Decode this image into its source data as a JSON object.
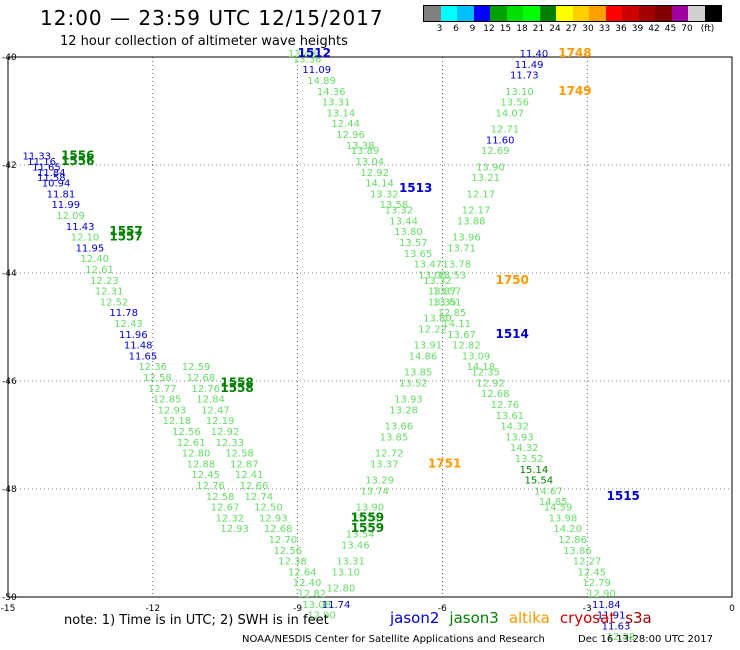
{
  "header": {
    "title": "12:00 — 23:59 UTC 12/15/2017",
    "subtitle": "12 hour collection of altimeter wave heights"
  },
  "scale": {
    "colors": [
      "#808080",
      "#00ffff",
      "#00bfff",
      "#0000ff",
      "#00a000",
      "#00e000",
      "#00ff00",
      "#008000",
      "#ffff00",
      "#ffd000",
      "#ffa000",
      "#ff0000",
      "#cc0000",
      "#a00000",
      "#800000",
      "#a000a0",
      "#d0d0d0",
      "#000000"
    ],
    "labels": [
      "3",
      "6",
      "9",
      "12",
      "15",
      "18",
      "21",
      "24",
      "27",
      "30",
      "33",
      "36",
      "39",
      "42",
      "45",
      "70",
      "(ft)"
    ]
  },
  "axes": {
    "x_ticks": [
      "-15",
      "-12",
      "-9",
      "-6",
      "-3",
      "0"
    ],
    "y_ticks": [
      "-40",
      "-42",
      "-44",
      "-46",
      "-48",
      "-50"
    ],
    "x_range": [
      -15,
      0
    ],
    "y_range": [
      -40,
      -50
    ]
  },
  "tracks": [
    {
      "name": "1512",
      "color": "#0000cc",
      "lon": -9.0,
      "lat": -40.0
    },
    {
      "name": "1513",
      "color": "#0000cc",
      "lon": -6.9,
      "lat": -42.5
    },
    {
      "name": "1514",
      "color": "#0000cc",
      "lon": -4.9,
      "lat": -45.2
    },
    {
      "name": "1515",
      "color": "#0000cc",
      "lon": -2.6,
      "lat": -48.2
    },
    {
      "name": "1748",
      "color": "#ff9900",
      "lon": -3.6,
      "lat": -40.0
    },
    {
      "name": "1749",
      "color": "#ff9900",
      "lon": -3.6,
      "lat": -40.7
    },
    {
      "name": "1750",
      "color": "#ff9900",
      "lon": -4.9,
      "lat": -44.2
    },
    {
      "name": "1751",
      "color": "#ff9900",
      "lon": -6.3,
      "lat": -47.6
    },
    {
      "name": "1556",
      "color": "#008000",
      "lon": -13.9,
      "lat": -41.9
    },
    {
      "name": "1556",
      "color": "#008000",
      "lon": -13.9,
      "lat": -42.0
    },
    {
      "name": "1557",
      "color": "#008000",
      "lon": -12.9,
      "lat": -43.3
    },
    {
      "name": "1557",
      "color": "#008000",
      "lon": -12.9,
      "lat": -43.4
    },
    {
      "name": "1558",
      "color": "#008000",
      "lon": -10.6,
      "lat": -46.1
    },
    {
      "name": "1558",
      "color": "#008000",
      "lon": -10.6,
      "lat": -46.2
    },
    {
      "name": "1559",
      "color": "#008000",
      "lon": -7.9,
      "lat": -48.6
    },
    {
      "name": "1559",
      "color": "#008000",
      "lon": -7.9,
      "lat": -48.8
    }
  ],
  "pass_1512": [
    {
      "v": "13.48",
      "lon": -9.2,
      "lat": -40.0,
      "c": "#66dd66"
    },
    {
      "v": "13.36",
      "lon": -9.1,
      "lat": -40.1,
      "c": "#66dd66"
    },
    {
      "v": "11.09",
      "lon": -8.9,
      "lat": -40.3,
      "c": "#0000cc"
    },
    {
      "v": "14.89",
      "lon": -8.8,
      "lat": -40.5,
      "c": "#66dd66"
    },
    {
      "v": "14.36",
      "lon": -8.6,
      "lat": -40.7,
      "c": "#66dd66"
    },
    {
      "v": "13.31",
      "lon": -8.5,
      "lat": -40.9,
      "c": "#66dd66"
    },
    {
      "v": "13.14",
      "lon": -8.4,
      "lat": -41.1,
      "c": "#66dd66"
    },
    {
      "v": "12.44",
      "lon": -8.3,
      "lat": -41.3,
      "c": "#66dd66"
    },
    {
      "v": "12.96",
      "lon": -8.2,
      "lat": -41.5,
      "c": "#66dd66"
    },
    {
      "v": "13.38",
      "lon": -8.0,
      "lat": -41.7,
      "c": "#66dd66"
    },
    {
      "v": "13.89",
      "lon": -7.9,
      "lat": -41.8,
      "c": "#66dd66"
    },
    {
      "v": "13.04",
      "lon": -7.8,
      "lat": -42.0,
      "c": "#66dd66"
    },
    {
      "v": "12.92",
      "lon": -7.7,
      "lat": -42.2,
      "c": "#66dd66"
    },
    {
      "v": "14.14",
      "lon": -7.6,
      "lat": -42.4,
      "c": "#66dd66"
    },
    {
      "v": "13.32",
      "lon": -7.5,
      "lat": -42.6,
      "c": "#66dd66"
    },
    {
      "v": "13.58",
      "lon": -7.3,
      "lat": -42.8,
      "c": "#66dd66"
    },
    {
      "v": "13.32",
      "lon": -7.2,
      "lat": -42.9,
      "c": "#66dd66"
    },
    {
      "v": "13.44",
      "lon": -7.1,
      "lat": -43.1,
      "c": "#66dd66"
    },
    {
      "v": "13.80",
      "lon": -7.0,
      "lat": -43.3,
      "c": "#66dd66"
    },
    {
      "v": "13.57",
      "lon": -6.9,
      "lat": -43.5,
      "c": "#66dd66"
    },
    {
      "v": "13.65",
      "lon": -6.8,
      "lat": -43.7,
      "c": "#66dd66"
    },
    {
      "v": "13.47",
      "lon": -6.6,
      "lat": -43.9,
      "c": "#66dd66"
    },
    {
      "v": "13.08",
      "lon": -6.5,
      "lat": -44.1,
      "c": "#66dd66"
    },
    {
      "v": "13.32",
      "lon": -6.4,
      "lat": -44.2,
      "c": "#66dd66"
    },
    {
      "v": "13.87",
      "lon": -6.3,
      "lat": -44.4,
      "c": "#66dd66"
    },
    {
      "v": "13.61",
      "lon": -6.2,
      "lat": -44.6,
      "c": "#66dd66"
    },
    {
      "v": "12.85",
      "lon": -6.1,
      "lat": -44.8,
      "c": "#66dd66"
    },
    {
      "v": "14.11",
      "lon": -6.0,
      "lat": -45.0,
      "c": "#66dd66"
    },
    {
      "v": "13.67",
      "lon": -5.9,
      "lat": -45.2,
      "c": "#66dd66"
    },
    {
      "v": "12.82",
      "lon": -5.8,
      "lat": -45.4,
      "c": "#66dd66"
    },
    {
      "v": "13.09",
      "lon": -5.6,
      "lat": -45.6,
      "c": "#66dd66"
    },
    {
      "v": "14.18",
      "lon": -5.5,
      "lat": -45.8,
      "c": "#66dd66"
    },
    {
      "v": "12.35",
      "lon": -5.4,
      "lat": -45.9,
      "c": "#66dd66"
    },
    {
      "v": "12.92",
      "lon": -5.3,
      "lat": -46.1,
      "c": "#66dd66"
    },
    {
      "v": "12.68",
      "lon": -5.2,
      "lat": -46.3,
      "c": "#66dd66"
    },
    {
      "v": "12.76",
      "lon": -5.0,
      "lat": -46.5,
      "c": "#66dd66"
    },
    {
      "v": "13.61",
      "lon": -4.9,
      "lat": -46.7,
      "c": "#66dd66"
    },
    {
      "v": "14.32",
      "lon": -4.8,
      "lat": -46.9,
      "c": "#66dd66"
    },
    {
      "v": "13.93",
      "lon": -4.7,
      "lat": -47.1,
      "c": "#66dd66"
    },
    {
      "v": "14.32",
      "lon": -4.6,
      "lat": -47.3,
      "c": "#66dd66"
    },
    {
      "v": "13.52",
      "lon": -4.5,
      "lat": -47.5,
      "c": "#66dd66"
    },
    {
      "v": "15.14",
      "lon": -4.4,
      "lat": -47.7,
      "c": "#008000"
    },
    {
      "v": "15.54",
      "lon": -4.3,
      "lat": -47.9,
      "c": "#008000"
    },
    {
      "v": "14.67",
      "lon": -4.1,
      "lat": -48.1,
      "c": "#66dd66"
    },
    {
      "v": "14.85",
      "lon": -4.0,
      "lat": -48.3,
      "c": "#66dd66"
    },
    {
      "v": "14.59",
      "lon": -3.9,
      "lat": -48.4,
      "c": "#66dd66"
    },
    {
      "v": "13.98",
      "lon": -3.8,
      "lat": -48.6,
      "c": "#66dd66"
    },
    {
      "v": "14.20",
      "lon": -3.7,
      "lat": -48.8,
      "c": "#66dd66"
    },
    {
      "v": "12.86",
      "lon": -3.6,
      "lat": -49.0,
      "c": "#66dd66"
    },
    {
      "v": "13.86",
      "lon": -3.5,
      "lat": -49.2,
      "c": "#66dd66"
    },
    {
      "v": "12.27",
      "lon": -3.3,
      "lat": -49.4,
      "c": "#66dd66"
    },
    {
      "v": "12.45",
      "lon": -3.2,
      "lat": -49.6,
      "c": "#66dd66"
    },
    {
      "v": "12.79",
      "lon": -3.1,
      "lat": -49.8,
      "c": "#66dd66"
    },
    {
      "v": "12.90",
      "lon": -3.0,
      "lat": -50.0,
      "c": "#66dd66"
    },
    {
      "v": "11.84",
      "lon": -2.9,
      "lat": -50.2,
      "c": "#0000cc"
    },
    {
      "v": "11.91",
      "lon": -2.8,
      "lat": -50.4,
      "c": "#0000cc"
    },
    {
      "v": "11.63",
      "lon": -2.7,
      "lat": -50.6,
      "c": "#0000cc"
    },
    {
      "v": "12.88",
      "lon": -2.6,
      "lat": -50.8,
      "c": "#66dd66"
    }
  ],
  "pass_1748": [
    {
      "v": "11.40",
      "lon": -4.4,
      "lat": -40.0,
      "c": "#0000cc"
    },
    {
      "v": "11.49",
      "lon": -4.5,
      "lat": -40.2,
      "c": "#0000cc"
    },
    {
      "v": "11.73",
      "lon": -4.6,
      "lat": -40.4,
      "c": "#0000cc"
    },
    {
      "v": "13.10",
      "lon": -4.7,
      "lat": -40.7,
      "c": "#66dd66"
    },
    {
      "v": "13.56",
      "lon": -4.8,
      "lat": -40.9,
      "c": "#66dd66"
    },
    {
      "v": "14.07",
      "lon": -4.9,
      "lat": -41.1,
      "c": "#66dd66"
    },
    {
      "v": "12.71",
      "lon": -5.0,
      "lat": -41.4,
      "c": "#66dd66"
    },
    {
      "v": "11.60",
      "lon": -5.1,
      "lat": -41.6,
      "c": "#0000cc"
    },
    {
      "v": "12.69",
      "lon": -5.2,
      "lat": -41.8,
      "c": "#66dd66"
    },
    {
      "v": "13.90",
      "lon": -5.3,
      "lat": -42.1,
      "c": "#66dd66"
    },
    {
      "v": "13.21",
      "lon": -5.4,
      "lat": -42.3,
      "c": "#66dd66"
    },
    {
      "v": "12.17",
      "lon": -5.5,
      "lat": -42.6,
      "c": "#66dd66"
    },
    {
      "v": "12.17",
      "lon": -5.6,
      "lat": -42.9,
      "c": "#66dd66"
    },
    {
      "v": "13.88",
      "lon": -5.7,
      "lat": -43.1,
      "c": "#66dd66"
    },
    {
      "v": "13.96",
      "lon": -5.8,
      "lat": -43.4,
      "c": "#66dd66"
    },
    {
      "v": "13.71",
      "lon": -5.9,
      "lat": -43.6,
      "c": "#66dd66"
    },
    {
      "v": "13.78",
      "lon": -6.0,
      "lat": -43.9,
      "c": "#66dd66"
    },
    {
      "v": "13.53",
      "lon": -6.1,
      "lat": -44.1,
      "c": "#66dd66"
    },
    {
      "v": "13.57",
      "lon": -6.2,
      "lat": -44.4,
      "c": "#66dd66"
    },
    {
      "v": "13.35",
      "lon": -6.3,
      "lat": -44.6,
      "c": "#66dd66"
    },
    {
      "v": "13.80",
      "lon": -6.4,
      "lat": -44.9,
      "c": "#66dd66"
    },
    {
      "v": "12.22",
      "lon": -6.5,
      "lat": -45.1,
      "c": "#66dd66"
    },
    {
      "v": "13.91",
      "lon": -6.6,
      "lat": -45.4,
      "c": "#66dd66"
    },
    {
      "v": "14.86",
      "lon": -6.7,
      "lat": -45.6,
      "c": "#66dd66"
    },
    {
      "v": "13.85",
      "lon": -6.8,
      "lat": -45.9,
      "c": "#66dd66"
    },
    {
      "v": "13.52",
      "lon": -6.9,
      "lat": -46.1,
      "c": "#66dd66"
    },
    {
      "v": "13.93",
      "lon": -7.0,
      "lat": -46.4,
      "c": "#66dd66"
    },
    {
      "v": "13.28",
      "lon": -7.1,
      "lat": -46.6,
      "c": "#66dd66"
    },
    {
      "v": "13.66",
      "lon": -7.2,
      "lat": -46.9,
      "c": "#66dd66"
    },
    {
      "v": "13.85",
      "lon": -7.3,
      "lat": -47.1,
      "c": "#66dd66"
    },
    {
      "v": "12.72",
      "lon": -7.4,
      "lat": -47.4,
      "c": "#66dd66"
    },
    {
      "v": "13.37",
      "lon": -7.5,
      "lat": -47.6,
      "c": "#66dd66"
    },
    {
      "v": "13.29",
      "lon": -7.6,
      "lat": -47.9,
      "c": "#66dd66"
    },
    {
      "v": "13.74",
      "lon": -7.7,
      "lat": -48.1,
      "c": "#66dd66"
    },
    {
      "v": "13.90",
      "lon": -7.8,
      "lat": -48.4,
      "c": "#66dd66"
    },
    {
      "v": "13.74",
      "lon": -7.9,
      "lat": -48.6,
      "c": "#66dd66"
    },
    {
      "v": "13.54",
      "lon": -8.0,
      "lat": -48.9,
      "c": "#66dd66"
    },
    {
      "v": "13.46",
      "lon": -8.1,
      "lat": -49.1,
      "c": "#66dd66"
    },
    {
      "v": "13.31",
      "lon": -8.2,
      "lat": -49.4,
      "c": "#66dd66"
    },
    {
      "v": "13.10",
      "lon": -8.3,
      "lat": -49.6,
      "c": "#66dd66"
    },
    {
      "v": "12.80",
      "lon": -8.4,
      "lat": -49.9,
      "c": "#66dd66"
    },
    {
      "v": "11.74",
      "lon": -8.5,
      "lat": -50.2,
      "c": "#0000cc"
    }
  ],
  "pass_1556": [
    {
      "v": "11.33",
      "lon": -14.7,
      "lat": -41.9,
      "c": "#0000cc"
    },
    {
      "v": "11.16",
      "lon": -14.6,
      "lat": -42.0,
      "c": "#0000cc"
    },
    {
      "v": "11.65",
      "lon": -14.5,
      "lat": -42.1,
      "c": "#0000cc"
    },
    {
      "v": "11.84",
      "lon": -14.4,
      "lat": -42.2,
      "c": "#0000cc"
    },
    {
      "v": "11.58",
      "lon": -14.4,
      "lat": -42.3,
      "c": "#0000cc"
    },
    {
      "v": "10.94",
      "lon": -14.3,
      "lat": -42.4,
      "c": "#0000cc"
    },
    {
      "v": "11.81",
      "lon": -14.2,
      "lat": -42.6,
      "c": "#0000cc"
    },
    {
      "v": "11.99",
      "lon": -14.1,
      "lat": -42.8,
      "c": "#0000cc"
    },
    {
      "v": "12.09",
      "lon": -14.0,
      "lat": -43.0,
      "c": "#66dd66"
    },
    {
      "v": "11.43",
      "lon": -13.8,
      "lat": -43.2,
      "c": "#0000cc"
    },
    {
      "v": "12.10",
      "lon": -13.7,
      "lat": -43.4,
      "c": "#66dd66"
    },
    {
      "v": "11.95",
      "lon": -13.6,
      "lat": -43.6,
      "c": "#0000cc"
    },
    {
      "v": "12.40",
      "lon": -13.5,
      "lat": -43.8,
      "c": "#66dd66"
    },
    {
      "v": "12.61",
      "lon": -13.4,
      "lat": -44.0,
      "c": "#66dd66"
    },
    {
      "v": "12.23",
      "lon": -13.3,
      "lat": -44.2,
      "c": "#66dd66"
    },
    {
      "v": "12.31",
      "lon": -13.2,
      "lat": -44.4,
      "c": "#66dd66"
    },
    {
      "v": "12.52",
      "lon": -13.1,
      "lat": -44.6,
      "c": "#66dd66"
    },
    {
      "v": "11.78",
      "lon": -12.9,
      "lat": -44.8,
      "c": "#0000cc"
    },
    {
      "v": "12.43",
      "lon": -12.8,
      "lat": -45.0,
      "c": "#66dd66"
    },
    {
      "v": "11.96",
      "lon": -12.7,
      "lat": -45.2,
      "c": "#0000cc"
    },
    {
      "v": "11.48",
      "lon": -12.6,
      "lat": -45.4,
      "c": "#0000cc"
    },
    {
      "v": "11.65",
      "lon": -12.5,
      "lat": -45.6,
      "c": "#0000cc"
    },
    {
      "v": "12.36",
      "lon": -12.3,
      "lat": -45.8,
      "c": "#66dd66"
    },
    {
      "v": "12.58",
      "lon": -12.2,
      "lat": -46.0,
      "c": "#66dd66"
    },
    {
      "v": "12.77",
      "lon": -12.1,
      "lat": -46.2,
      "c": "#66dd66"
    },
    {
      "v": "12.85",
      "lon": -12.0,
      "lat": -46.4,
      "c": "#66dd66"
    },
    {
      "v": "12.93",
      "lon": -11.9,
      "lat": -46.6,
      "c": "#66dd66"
    },
    {
      "v": "12.18",
      "lon": -11.8,
      "lat": -46.8,
      "c": "#66dd66"
    },
    {
      "v": "12.56",
      "lon": -11.6,
      "lat": -47.0,
      "c": "#66dd66"
    },
    {
      "v": "12.61",
      "lon": -11.5,
      "lat": -47.2,
      "c": "#66dd66"
    },
    {
      "v": "12.80",
      "lon": -11.4,
      "lat": -47.4,
      "c": "#66dd66"
    },
    {
      "v": "12.88",
      "lon": -11.3,
      "lat": -47.6,
      "c": "#66dd66"
    },
    {
      "v": "12.45",
      "lon": -11.2,
      "lat": -47.8,
      "c": "#66dd66"
    },
    {
      "v": "12.76",
      "lon": -11.1,
      "lat": -48.0,
      "c": "#66dd66"
    },
    {
      "v": "12.58",
      "lon": -10.9,
      "lat": -48.2,
      "c": "#66dd66"
    },
    {
      "v": "12.67",
      "lon": -10.8,
      "lat": -48.4,
      "c": "#66dd66"
    },
    {
      "v": "12.32",
      "lon": -10.7,
      "lat": -48.6,
      "c": "#66dd66"
    },
    {
      "v": "12.93",
      "lon": -10.6,
      "lat": -48.8,
      "c": "#66dd66"
    }
  ],
  "pass_1558": [
    {
      "v": "12.59",
      "lon": -11.4,
      "lat": -45.8,
      "c": "#66dd66"
    },
    {
      "v": "12.68",
      "lon": -11.3,
      "lat": -46.0,
      "c": "#66dd66"
    },
    {
      "v": "12.76",
      "lon": -11.2,
      "lat": -46.2,
      "c": "#66dd66"
    },
    {
      "v": "12.84",
      "lon": -11.1,
      "lat": -46.4,
      "c": "#66dd66"
    },
    {
      "v": "12.47",
      "lon": -11.0,
      "lat": -46.6,
      "c": "#66dd66"
    },
    {
      "v": "12.19",
      "lon": -10.9,
      "lat": -46.8,
      "c": "#66dd66"
    },
    {
      "v": "12.92",
      "lon": -10.8,
      "lat": -47.0,
      "c": "#66dd66"
    },
    {
      "v": "12.33",
      "lon": -10.7,
      "lat": -47.2,
      "c": "#66dd66"
    },
    {
      "v": "12.58",
      "lon": -10.5,
      "lat": -47.4,
      "c": "#66dd66"
    },
    {
      "v": "12.87",
      "lon": -10.4,
      "lat": -47.6,
      "c": "#66dd66"
    },
    {
      "v": "12.41",
      "lon": -10.3,
      "lat": -47.8,
      "c": "#66dd66"
    },
    {
      "v": "12.66",
      "lon": -10.2,
      "lat": -48.0,
      "c": "#66dd66"
    },
    {
      "v": "12.74",
      "lon": -10.1,
      "lat": -48.2,
      "c": "#66dd66"
    },
    {
      "v": "12.50",
      "lon": -9.9,
      "lat": -48.4,
      "c": "#66dd66"
    },
    {
      "v": "12.93",
      "lon": -9.8,
      "lat": -48.6,
      "c": "#66dd66"
    },
    {
      "v": "12.68",
      "lon": -9.7,
      "lat": -48.8,
      "c": "#66dd66"
    },
    {
      "v": "12.70",
      "lon": -9.6,
      "lat": -49.0,
      "c": "#66dd66"
    },
    {
      "v": "12.56",
      "lon": -9.5,
      "lat": -49.2,
      "c": "#66dd66"
    },
    {
      "v": "12.38",
      "lon": -9.4,
      "lat": -49.4,
      "c": "#66dd66"
    },
    {
      "v": "12.64",
      "lon": -9.2,
      "lat": -49.6,
      "c": "#66dd66"
    },
    {
      "v": "12.40",
      "lon": -9.1,
      "lat": -49.8,
      "c": "#66dd66"
    },
    {
      "v": "12.82",
      "lon": -9.0,
      "lat": -50.0,
      "c": "#66dd66"
    },
    {
      "v": "13.08",
      "lon": -8.9,
      "lat": -50.2,
      "c": "#66dd66"
    },
    {
      "v": "12.90",
      "lon": -8.8,
      "lat": -50.4,
      "c": "#66dd66"
    }
  ],
  "footer": {
    "note": "note: 1) Time is in UTC; 2) SWH is in feet",
    "credit": "NOAA/NESDIS Center for Satellite Applications and Research",
    "timestamp": "Dec 16 13:28:00 UTC 2017"
  },
  "legend": [
    {
      "label": "jason2",
      "color": "#0000cc"
    },
    {
      "label": "jason3",
      "color": "#008000"
    },
    {
      "label": "altika",
      "color": "#ff9900"
    },
    {
      "label": "cryosat",
      "color": "#cc0000"
    },
    {
      "label": "s3a",
      "color": "#990000"
    }
  ]
}
